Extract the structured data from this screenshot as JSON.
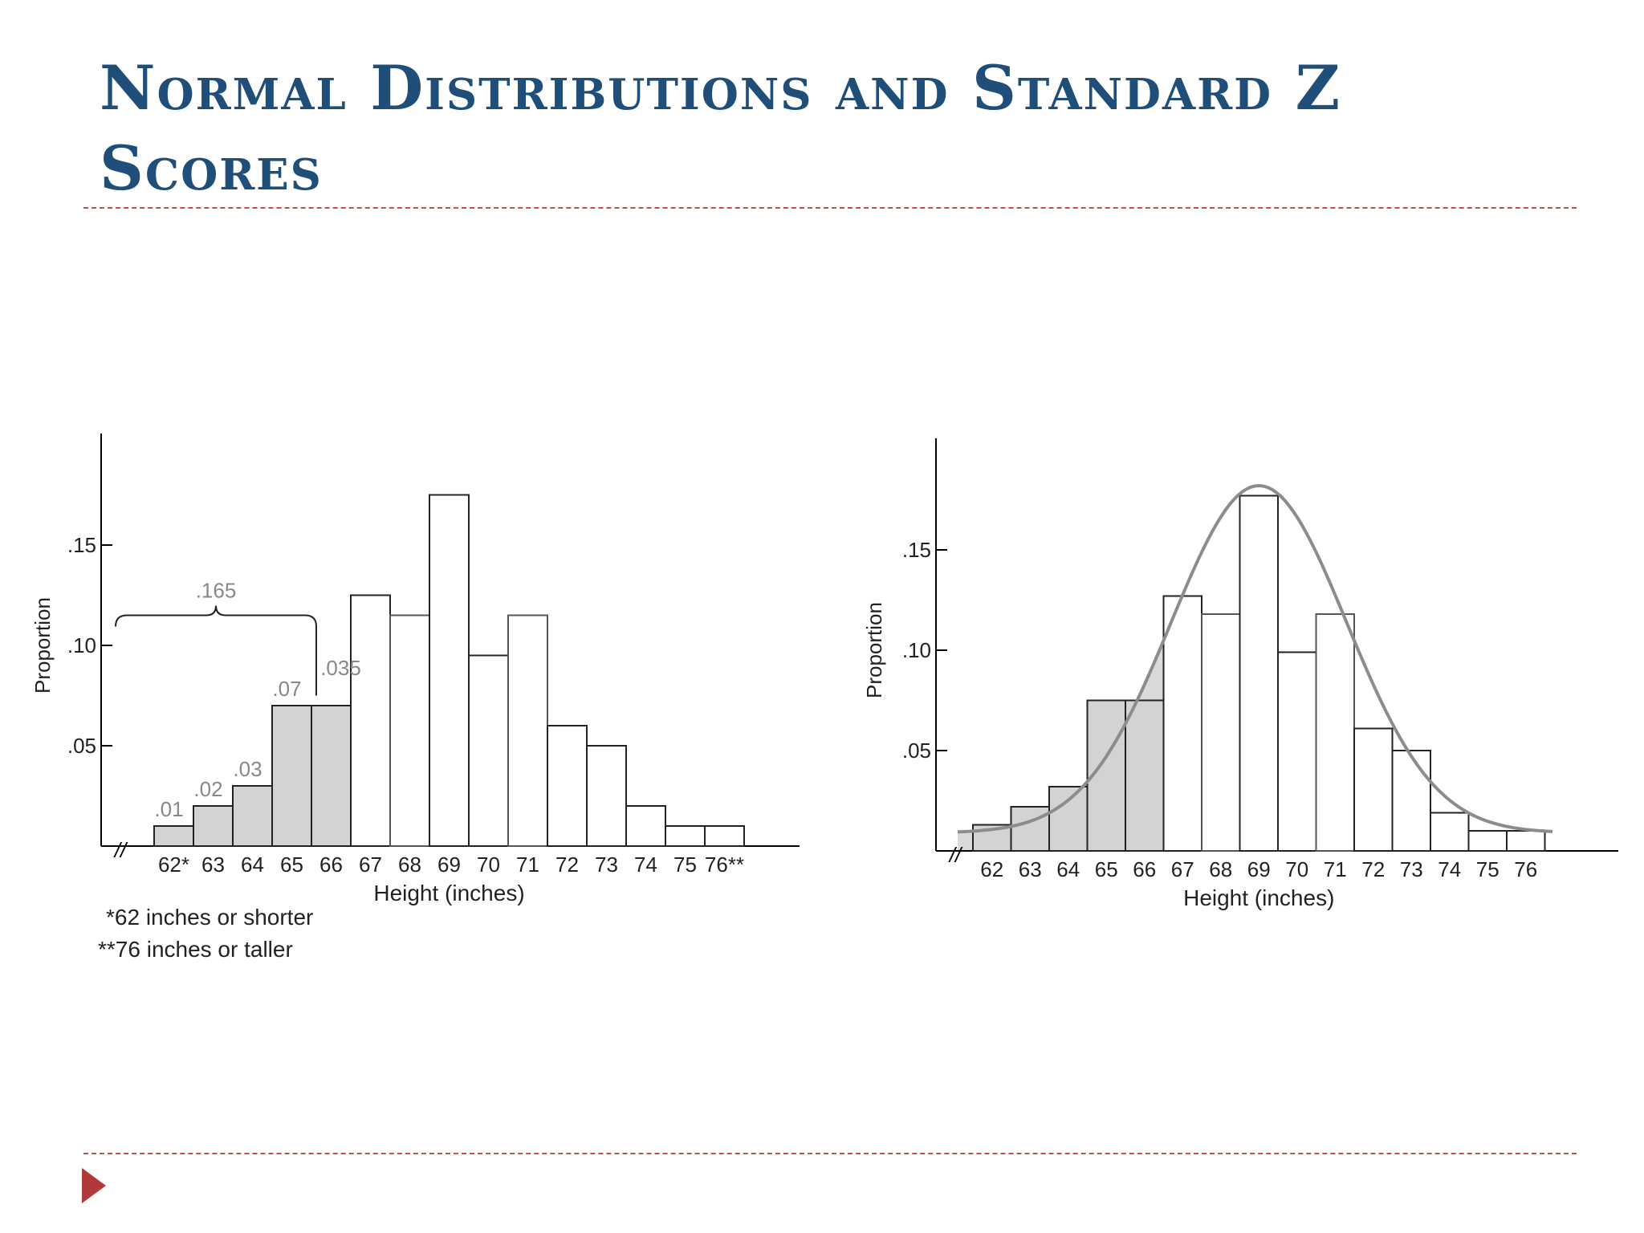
{
  "slide": {
    "title": "Normal Distributions and Standard Z Scores",
    "colors": {
      "title": "#1F4E79",
      "rule": "#C0504D",
      "bullet": "#B03A3A",
      "shade": "#D3D3D3",
      "curve": "#8C8C8C"
    },
    "bullet_icon": "triangle-right-icon"
  },
  "chart_data": [
    {
      "type": "bar",
      "categories": [
        "62*",
        "63",
        "64",
        "65",
        "66",
        "67",
        "68",
        "69",
        "70",
        "71",
        "72",
        "73",
        "74",
        "75",
        "76**"
      ],
      "values": [
        0.01,
        0.02,
        0.03,
        0.07,
        0.07,
        0.125,
        0.115,
        0.175,
        0.095,
        0.115,
        0.06,
        0.05,
        0.02,
        0.01,
        0.01
      ],
      "shaded_through": "66",
      "xlabel": "Height (inches)",
      "ylabel": "Proportion",
      "yticks": [
        {
          "value": 0.05,
          "label": ".05"
        },
        {
          "value": 0.1,
          "label": ".10"
        },
        {
          "value": 0.15,
          "label": ".15"
        }
      ],
      "ylim": [
        0,
        0.2
      ],
      "axis_break": "//",
      "bar_labels": [
        {
          "category": "62*",
          "label": ".01"
        },
        {
          "category": "63",
          "label": ".02"
        },
        {
          "category": "64",
          "label": ".03"
        },
        {
          "category": "65",
          "label": ".07"
        },
        {
          "category": "66",
          "label": ".035"
        }
      ],
      "brace": {
        "from": "62*",
        "to": "66",
        "label": ".165"
      },
      "footnotes": [
        "*62 inches or shorter",
        "**76 inches or taller"
      ]
    },
    {
      "type": "bar",
      "categories": [
        "62",
        "63",
        "64",
        "65",
        "66",
        "67",
        "68",
        "69",
        "70",
        "71",
        "72",
        "73",
        "74",
        "75",
        "76"
      ],
      "values": [
        0.013,
        0.022,
        0.032,
        0.075,
        0.075,
        0.127,
        0.118,
        0.177,
        0.099,
        0.118,
        0.061,
        0.05,
        0.019,
        0.01,
        0.01
      ],
      "shaded_through": "66",
      "xlabel": "Height (inches)",
      "ylabel": "Proportion",
      "yticks": [
        {
          "value": 0.05,
          "label": ".05"
        },
        {
          "value": 0.1,
          "label": ".10"
        },
        {
          "value": 0.15,
          "label": ".15"
        }
      ],
      "ylim": [
        0,
        0.2
      ],
      "axis_break": "//",
      "curve": {
        "kind": "normal",
        "mean": 69,
        "sd": 2.3,
        "peak": 0.173
      }
    }
  ]
}
